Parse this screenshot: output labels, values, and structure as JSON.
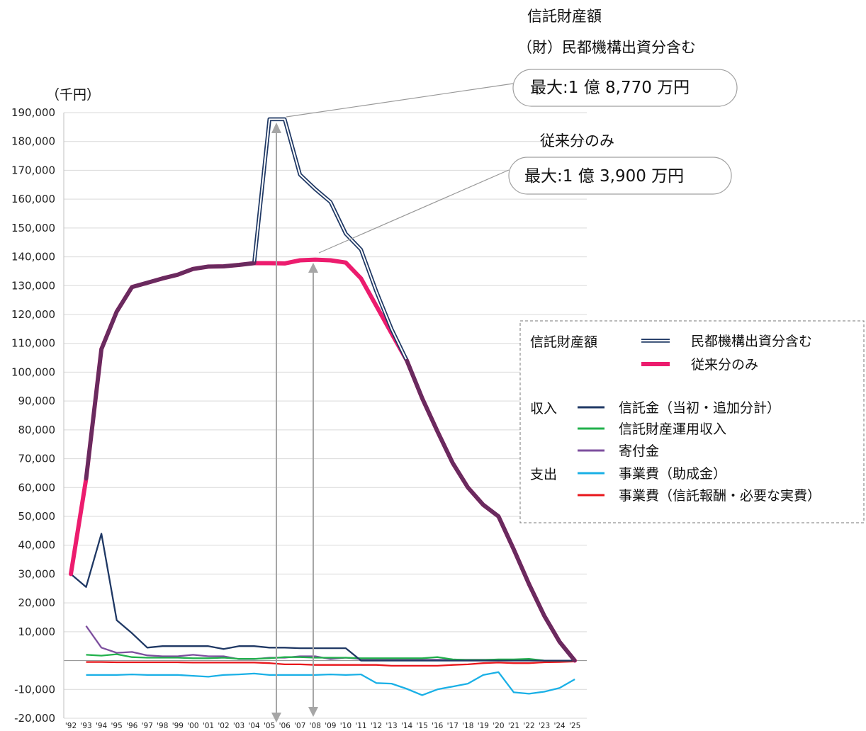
{
  "chart_data": {
    "type": "line",
    "title": "",
    "xlabel": "",
    "ylabel": "（千円）",
    "ylim": [
      -20000,
      190000
    ],
    "yticks": [
      -20000,
      -10000,
      0,
      10000,
      20000,
      30000,
      40000,
      50000,
      60000,
      70000,
      80000,
      90000,
      100000,
      110000,
      120000,
      130000,
      140000,
      150000,
      160000,
      170000,
      180000,
      190000
    ],
    "ytick_labels": [
      "-20,000",
      "-10,000",
      "",
      "10,000",
      "20,000",
      "30,000",
      "40,000",
      "50,000",
      "60,000",
      "70,000",
      "80,000",
      "90,000",
      "100,000",
      "110,000",
      "120,000",
      "130,000",
      "140,000",
      "150,000",
      "160,000",
      "170,000",
      "180,000",
      "190,000"
    ],
    "x": [
      "'92",
      "'93",
      "'94",
      "'95",
      "'96",
      "'97",
      "'98",
      "'99",
      "'00",
      "'01",
      "'02",
      "'03",
      "'04",
      "'05",
      "'06",
      "'07",
      "'08",
      "'09",
      "'10",
      "'11",
      "'12",
      "'13",
      "'14",
      "'15",
      "'16",
      "'17",
      "'18",
      "'19",
      "'20",
      "'21",
      "'22",
      "'23",
      "'24",
      "'25"
    ],
    "grid": true,
    "series": [
      {
        "name": "民都機構出資分含む",
        "group": "信託財産額",
        "color": "#1f3864",
        "style": "double",
        "values": [
          null,
          63000,
          108000,
          121000,
          129500,
          131000,
          132500,
          133800,
          135800,
          136600,
          136700,
          137200,
          137800,
          187700,
          187700,
          168500,
          163500,
          159000,
          148000,
          142500,
          128000,
          115000,
          104000,
          91000,
          79500,
          68500,
          60000,
          54000,
          50000,
          38500,
          26500,
          15500,
          6500,
          0
        ]
      },
      {
        "name": "従来分のみ",
        "group": "信託財産額",
        "color": "#ec1c6e",
        "style": "thick",
        "values": [
          30000,
          63000,
          108000,
          121000,
          129500,
          131000,
          132500,
          133800,
          135800,
          136600,
          136700,
          137200,
          137800,
          137800,
          137700,
          138800,
          139000,
          138800,
          138000,
          132500,
          123000,
          113500,
          104000,
          91000,
          79500,
          68500,
          60000,
          54000,
          50000,
          38500,
          26500,
          15500,
          6500,
          0
        ]
      },
      {
        "name": "信託金（当初・追加分計）",
        "group": "収入",
        "color": "#1f3864",
        "values": [
          30000,
          25500,
          44000,
          14000,
          9500,
          4500,
          5000,
          5000,
          5000,
          5000,
          4000,
          5000,
          5000,
          4500,
          4500,
          4300,
          4300,
          4300,
          4300,
          0,
          0,
          0,
          0,
          0,
          0,
          0,
          0,
          0,
          0,
          0,
          0,
          0,
          0,
          0
        ]
      },
      {
        "name": "信託財産運用収入",
        "group": "収入",
        "color": "#22b14c",
        "values": [
          null,
          2000,
          1700,
          2200,
          1200,
          1000,
          1000,
          1000,
          800,
          800,
          1000,
          600,
          600,
          800,
          1200,
          1200,
          1000,
          1000,
          1000,
          800,
          800,
          800,
          800,
          800,
          1200,
          400,
          200,
          200,
          400,
          400,
          600,
          0,
          0,
          0
        ]
      },
      {
        "name": "寄付金",
        "group": "収入",
        "color": "#7d4f9e",
        "values": [
          null,
          12000,
          4500,
          2700,
          3000,
          1800,
          1500,
          1500,
          2000,
          1500,
          1500,
          500,
          500,
          1000,
          1000,
          1500,
          1500,
          500,
          1000,
          500,
          500,
          500,
          300,
          300,
          300,
          300,
          300,
          300,
          300,
          300,
          300,
          0,
          0,
          0
        ]
      },
      {
        "name": "事業費（助成金）",
        "group": "支出",
        "color": "#1ab0e6",
        "values": [
          null,
          -5000,
          -5000,
          -5000,
          -4800,
          -5000,
          -5000,
          -5000,
          -5300,
          -5600,
          -5000,
          -4800,
          -4500,
          -5000,
          -5000,
          -5000,
          -5000,
          -4800,
          -5000,
          -4800,
          -7800,
          -8000,
          -9800,
          -12000,
          -10000,
          -9000,
          -8000,
          -5000,
          -4000,
          -11000,
          -11500,
          -10800,
          -9500,
          -6500
        ]
      },
      {
        "name": "事業費（信託報酬・必要な実費）",
        "group": "支出",
        "color": "#e8161b",
        "values": [
          null,
          -500,
          -500,
          -600,
          -600,
          -600,
          -600,
          -600,
          -700,
          -700,
          -700,
          -700,
          -700,
          -900,
          -1300,
          -1300,
          -1500,
          -1500,
          -1500,
          -1500,
          -1500,
          -1800,
          -1800,
          -1800,
          -1800,
          -1500,
          -1300,
          -900,
          -700,
          -900,
          -900,
          -600,
          -500,
          -300
        ]
      }
    ],
    "annotations": {
      "top_header_1": "信託財産額",
      "top_header_2": "（財）民都機構出資分含む",
      "callout_max_all": "最大:1 億 8,770 万円",
      "sub_header": "従来分のみ",
      "callout_max_base": "最大:1 億 3,900 万円"
    },
    "legend": {
      "placement": "right",
      "group_asset": "信託財産額",
      "group_income": "収入",
      "group_expense": "支出"
    }
  }
}
